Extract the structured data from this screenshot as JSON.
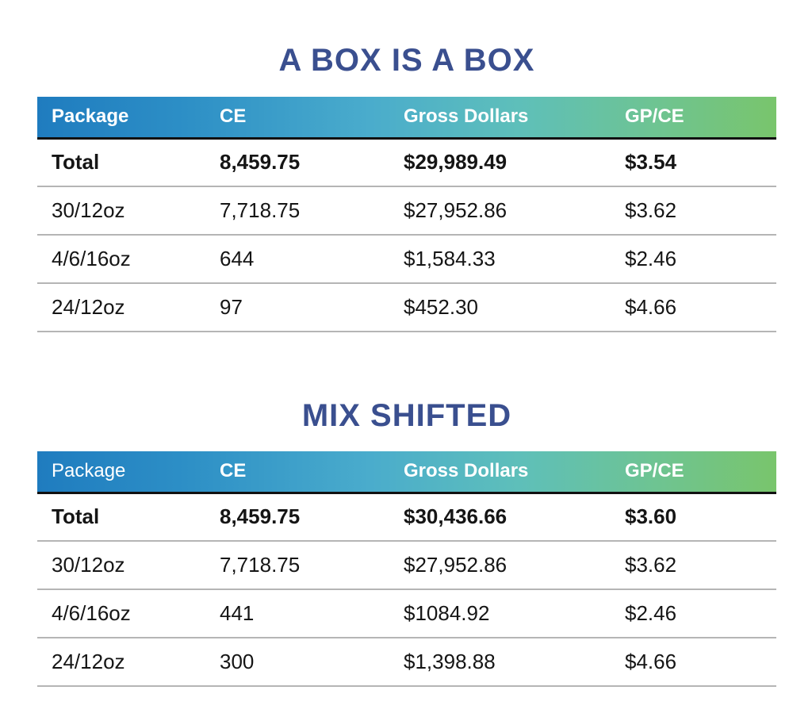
{
  "tables": [
    {
      "title": "A BOX IS A BOX",
      "headers": [
        "Package",
        "CE",
        "Gross Dollars",
        "GP/CE"
      ],
      "rows": [
        [
          "Total",
          "8,459.75",
          "$29,989.49",
          "$3.54"
        ],
        [
          "30/12oz",
          "7,718.75",
          "$27,952.86",
          "$3.62"
        ],
        [
          "4/6/16oz",
          "644",
          "$1,584.33",
          "$2.46"
        ],
        [
          "24/12oz",
          "97",
          "$452.30",
          "$4.66"
        ]
      ]
    },
    {
      "title": "MIX SHIFTED",
      "headers": [
        "Package",
        "CE",
        "Gross Dollars",
        "GP/CE"
      ],
      "rows": [
        [
          "Total",
          "8,459.75",
          "$30,436.66",
          "$3.60"
        ],
        [
          "30/12oz",
          "7,718.75",
          "$27,952.86",
          "$3.62"
        ],
        [
          "4/6/16oz",
          "441",
          "$1084.92",
          "$2.46"
        ],
        [
          "24/12oz",
          "300",
          "$1,398.88",
          "$4.66"
        ]
      ]
    }
  ],
  "colors": {
    "title": "#3a4f8f",
    "header_gradient_start": "#1f7cbf",
    "header_gradient_end": "#79c56c"
  }
}
